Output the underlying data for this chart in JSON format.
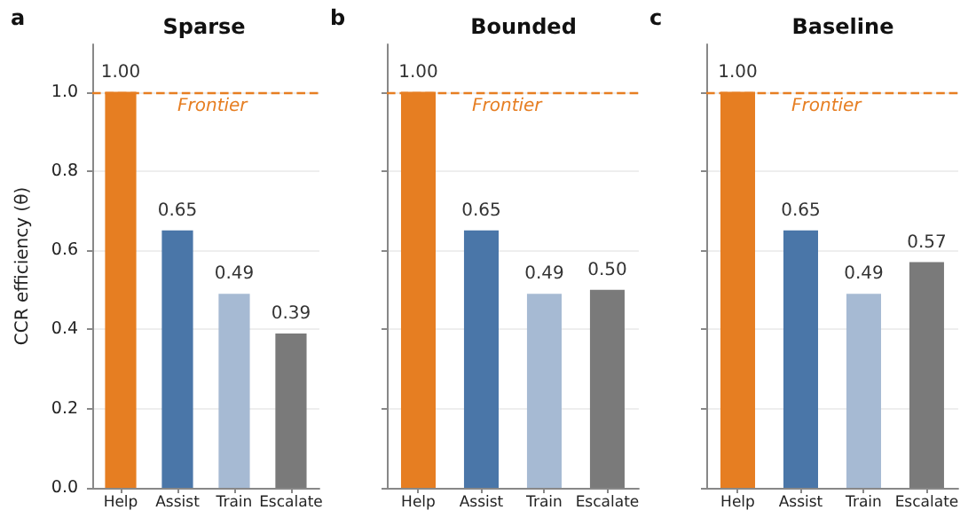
{
  "chart_data": [
    {
      "type": "bar",
      "title": "Sparse",
      "ylabel": "CCR efficiency (θ)",
      "annotations": [
        "a"
      ],
      "categories": [
        "Help",
        "Assist",
        "Train",
        "Escalate"
      ],
      "values": [
        1.0,
        0.65,
        0.49,
        0.39
      ],
      "value_labels": [
        "1.00",
        "0.65",
        "0.49",
        "0.39"
      ],
      "colors": [
        "#e67e22",
        "#4a76a8",
        "#a6bad3",
        "#7a7a7a"
      ],
      "ylim": [
        0,
        1.12
      ],
      "yticks": [
        {
          "value": 0,
          "label": "0.0"
        },
        0.2,
        0.4,
        0.6,
        0.8,
        {
          "value": 1,
          "label": "1.0"
        }
      ],
      "grid": "y",
      "ref_lines": [
        {
          "axis": "y",
          "value": 1.0,
          "label": "Frontier",
          "color": "#e67e22",
          "line_style": "dashed"
        }
      ]
    },
    {
      "type": "bar",
      "title": "Bounded",
      "annotations": [
        "b"
      ],
      "categories": [
        "Help",
        "Assist",
        "Train",
        "Escalate"
      ],
      "values": [
        1.0,
        0.65,
        0.49,
        0.5
      ],
      "value_labels": [
        "1.00",
        "0.65",
        "0.49",
        "0.50"
      ],
      "colors": [
        "#e67e22",
        "#4a76a8",
        "#a6bad3",
        "#7a7a7a"
      ],
      "ylim": [
        0,
        1.12
      ],
      "yticks": [
        0,
        0.2,
        0.4,
        0.6,
        0.8,
        1
      ],
      "grid": "y",
      "tick_labels": "x",
      "ref_lines": [
        {
          "axis": "y",
          "value": 1.0,
          "label": "Frontier",
          "color": "#e67e22",
          "line_style": "dashed"
        }
      ]
    },
    {
      "type": "bar",
      "title": "Baseline",
      "annotations": [
        "c"
      ],
      "categories": [
        "Help",
        "Assist",
        "Train",
        "Escalate"
      ],
      "values": [
        1.0,
        0.65,
        0.49,
        0.57
      ],
      "value_labels": [
        "1.00",
        "0.65",
        "0.49",
        "0.57"
      ],
      "colors": [
        "#e67e22",
        "#4a76a8",
        "#a6bad3",
        "#7a7a7a"
      ],
      "ylim": [
        0,
        1.12
      ],
      "yticks": [
        0,
        0.2,
        0.4,
        0.6,
        0.8,
        1
      ],
      "grid": "y",
      "tick_labels": "x",
      "ref_lines": [
        {
          "axis": "y",
          "value": 1.0,
          "label": "Frontier",
          "color": "#e67e22",
          "line_style": "dashed"
        }
      ]
    }
  ]
}
